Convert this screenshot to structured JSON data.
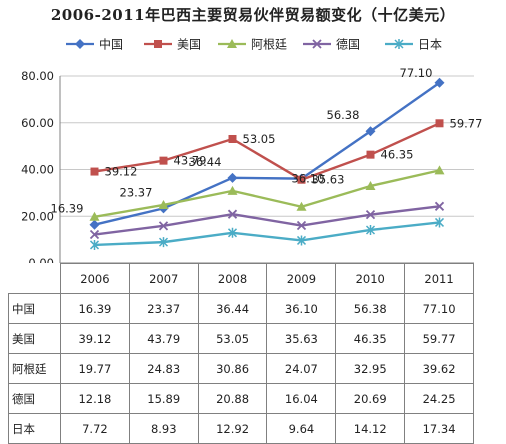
{
  "chart_data": {
    "type": "line",
    "title": "2006-2011年巴西主要贸易伙伴贸易额变化（十亿美元）",
    "categories": [
      "2006",
      "2007",
      "2008",
      "2009",
      "2010",
      "2011"
    ],
    "ylim": [
      0,
      80
    ],
    "yticks": [
      "0.00",
      "20.00",
      "40.00",
      "60.00",
      "80.00"
    ],
    "grid": true,
    "legend_position": "top",
    "series": [
      {
        "name": "中国",
        "color": "#4472c4",
        "marker": "diamond",
        "values": [
          16.39,
          23.37,
          36.44,
          36.1,
          56.38,
          77.1
        ],
        "labels": [
          "16.39",
          "23.37",
          "36.44",
          "36.10",
          "56.38",
          "77.10"
        ]
      },
      {
        "name": "美国",
        "color": "#c0504d",
        "marker": "square",
        "values": [
          39.12,
          43.79,
          53.05,
          35.63,
          46.35,
          59.77
        ],
        "labels": [
          "39.12",
          "43.79",
          "53.05",
          "35.63",
          "46.35",
          "59.77"
        ]
      },
      {
        "name": "阿根廷",
        "color": "#9bbb59",
        "marker": "triangle",
        "values": [
          19.77,
          24.83,
          30.86,
          24.07,
          32.95,
          39.62
        ],
        "labels": [
          "19.77",
          "24.83",
          "30.86",
          "24.07",
          "32.95",
          "39.62"
        ]
      },
      {
        "name": "德国",
        "color": "#8064a2",
        "marker": "x",
        "values": [
          12.18,
          15.89,
          20.88,
          16.04,
          20.69,
          24.25
        ],
        "labels": [
          "12.18",
          "15.89",
          "20.88",
          "16.04",
          "20.69",
          "24.25"
        ]
      },
      {
        "name": "日本",
        "color": "#4bacc6",
        "marker": "star",
        "values": [
          7.72,
          8.93,
          12.92,
          9.64,
          14.12,
          17.34
        ],
        "labels": [
          "7.72",
          "8.93",
          "12.92",
          "9.64",
          "14.12",
          "17.34"
        ]
      }
    ]
  }
}
